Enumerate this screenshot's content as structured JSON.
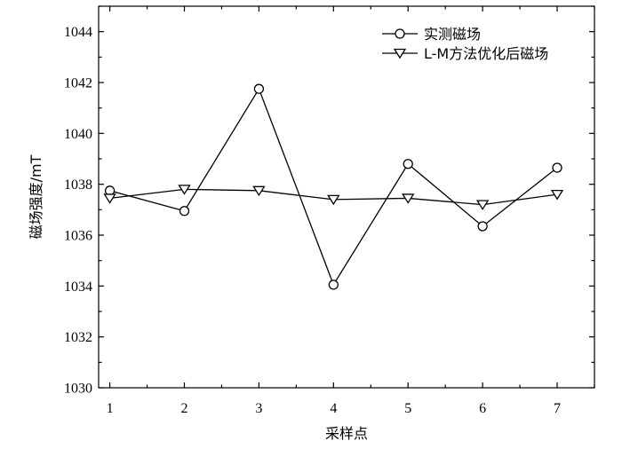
{
  "chart_data": {
    "type": "line",
    "title": "",
    "xlabel": "采样点",
    "ylabel": "磁场强度/mT",
    "x": [
      1,
      2,
      3,
      4,
      5,
      6,
      7
    ],
    "xlim": [
      0.85,
      7.5
    ],
    "ylim": [
      1030,
      1045
    ],
    "xticks": [
      1,
      2,
      3,
      4,
      5,
      6,
      7
    ],
    "yticks": [
      1030,
      1032,
      1034,
      1036,
      1038,
      1040,
      1042,
      1044
    ],
    "grid": false,
    "legend_position": "top-right",
    "series": [
      {
        "name": "实测磁场",
        "marker": "circle",
        "color": "#000000",
        "values": [
          1037.75,
          1036.95,
          1041.75,
          1034.05,
          1038.8,
          1036.35,
          1038.65
        ]
      },
      {
        "name": "L-M方法优化后磁场",
        "marker": "triangle-down",
        "color": "#000000",
        "values": [
          1037.45,
          1037.8,
          1037.75,
          1037.4,
          1037.45,
          1037.2,
          1037.6
        ]
      }
    ]
  }
}
